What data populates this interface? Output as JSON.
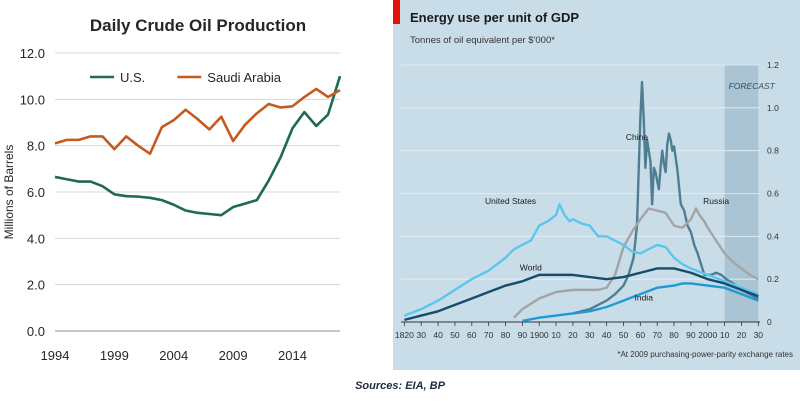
{
  "chart_data": [
    {
      "type": "line",
      "title": "Daily Crude Oil Production",
      "ylabel": "Millions of Barrels",
      "xlabel": "",
      "xlim": [
        1994,
        2018
      ],
      "ylim": [
        0,
        12
      ],
      "xticks": [
        1994,
        1999,
        2004,
        2009,
        2014
      ],
      "xtick_labels": [
        "1994",
        "1999",
        "2004",
        "2009",
        "2014"
      ],
      "yticks": [
        0,
        2,
        4,
        6,
        8,
        10,
        12
      ],
      "ytick_labels": [
        "0.0",
        "2.0",
        "4.0",
        "6.0",
        "8.0",
        "10.0",
        "12.0"
      ],
      "grid": true,
      "legend": "top-left",
      "x": [
        1994,
        1995,
        1996,
        1997,
        1998,
        1999,
        2000,
        2001,
        2002,
        2003,
        2004,
        2005,
        2006,
        2007,
        2008,
        2009,
        2010,
        2011,
        2012,
        2013,
        2014,
        2015,
        2016,
        2017,
        2018
      ],
      "series": [
        {
          "name": "U.S.",
          "color": "#1e6b4e",
          "values": [
            6.65,
            6.55,
            6.45,
            6.45,
            6.25,
            5.9,
            5.82,
            5.8,
            5.75,
            5.65,
            5.45,
            5.2,
            5.1,
            5.05,
            5.0,
            5.35,
            5.5,
            5.65,
            6.5,
            7.5,
            8.75,
            9.45,
            8.85,
            9.35,
            11.0
          ]
        },
        {
          "name": "Saudi Arabia",
          "color": "#c65a1e",
          "values": [
            8.1,
            8.25,
            8.25,
            8.4,
            8.4,
            7.85,
            8.4,
            8.0,
            7.65,
            8.8,
            9.1,
            9.55,
            9.15,
            8.7,
            9.25,
            8.2,
            8.9,
            9.4,
            9.8,
            9.65,
            9.7,
            10.1,
            10.45,
            10.1,
            10.4
          ]
        }
      ]
    },
    {
      "type": "line",
      "title": "Energy use per unit of GDP",
      "subtitle": "Tonnes of oil equivalent per $'000*",
      "footnote": "*At 2009 purchasing-power-parity exchange rates",
      "annotation": "FORECAST",
      "forecast_range": [
        2010,
        2030
      ],
      "xlim": [
        1818,
        2031
      ],
      "ylim": [
        0,
        1.2
      ],
      "xtick_values": [
        1820,
        1830,
        1840,
        1850,
        1860,
        1870,
        1880,
        1890,
        1900,
        1910,
        1920,
        1930,
        1940,
        1950,
        1960,
        1970,
        1980,
        1990,
        2000,
        2010,
        2020,
        2030
      ],
      "xtick_labels": [
        "1820",
        "30",
        "40",
        "50",
        "60",
        "70",
        "80",
        "90",
        "1900",
        "10",
        "20",
        "30",
        "40",
        "50",
        "60",
        "70",
        "80",
        "90",
        "2000",
        "10",
        "20",
        "30"
      ],
      "ytick_values": [
        0,
        0.2,
        0.4,
        0.6,
        0.8,
        1.0,
        1.2
      ],
      "ytick_labels": [
        "0",
        "0.2",
        "0.4",
        "0.6",
        "0.8",
        "1.0",
        "1.2"
      ],
      "grid": true,
      "colors": {
        "background": "#c9dde9",
        "forecast": "#aac4d4",
        "grid": "#e6eff5",
        "accent": "#e3120b"
      },
      "series": [
        {
          "name": "China",
          "color": "#4f7e92",
          "label_at": [
            1958,
            0.85
          ],
          "x": [
            1920,
            1930,
            1940,
            1945,
            1950,
            1953,
            1956,
            1958,
            1959,
            1960,
            1961,
            1962,
            1963,
            1964,
            1965,
            1966,
            1967,
            1968,
            1969,
            1970,
            1971,
            1972,
            1973,
            1974,
            1975,
            1976,
            1977,
            1978,
            1979,
            1980,
            1982,
            1984,
            1986,
            1988,
            1990,
            1992,
            1994,
            1996,
            1998,
            2000,
            2002,
            2005,
            2008,
            2011,
            2015,
            2020,
            2025,
            2030
          ],
          "values": [
            0.04,
            0.06,
            0.1,
            0.13,
            0.17,
            0.22,
            0.3,
            0.45,
            0.7,
            0.95,
            1.12,
            0.95,
            0.72,
            0.85,
            0.8,
            0.75,
            0.55,
            0.72,
            0.7,
            0.66,
            0.62,
            0.72,
            0.8,
            0.74,
            0.7,
            0.83,
            0.88,
            0.85,
            0.8,
            0.82,
            0.71,
            0.55,
            0.52,
            0.45,
            0.42,
            0.36,
            0.32,
            0.27,
            0.22,
            0.22,
            0.22,
            0.23,
            0.22,
            0.2,
            0.18,
            0.15,
            0.13,
            0.11
          ]
        },
        {
          "name": "Russia",
          "color": "#a3a4a5",
          "label_at": [
            2005,
            0.55
          ],
          "x": [
            1885,
            1890,
            1900,
            1910,
            1920,
            1925,
            1930,
            1935,
            1940,
            1945,
            1950,
            1955,
            1960,
            1965,
            1970,
            1975,
            1980,
            1985,
            1990,
            1993,
            1995,
            1998,
            2000,
            2005,
            2010,
            2015,
            2020,
            2025,
            2030
          ],
          "values": [
            0.02,
            0.06,
            0.11,
            0.14,
            0.15,
            0.15,
            0.15,
            0.15,
            0.16,
            0.22,
            0.35,
            0.42,
            0.48,
            0.53,
            0.52,
            0.51,
            0.45,
            0.44,
            0.48,
            0.53,
            0.5,
            0.47,
            0.44,
            0.38,
            0.32,
            0.28,
            0.25,
            0.22,
            0.2
          ]
        },
        {
          "name": "United States",
          "color": "#5bc6ee",
          "label_at": [
            1883,
            0.55
          ],
          "x": [
            1820,
            1830,
            1840,
            1850,
            1860,
            1870,
            1880,
            1885,
            1890,
            1895,
            1900,
            1905,
            1910,
            1912,
            1915,
            1918,
            1920,
            1925,
            1930,
            1935,
            1940,
            1945,
            1950,
            1955,
            1960,
            1965,
            1970,
            1975,
            1980,
            1985,
            1990,
            2000,
            2010,
            2020,
            2030
          ],
          "values": [
            0.03,
            0.06,
            0.1,
            0.15,
            0.2,
            0.24,
            0.3,
            0.34,
            0.36,
            0.38,
            0.45,
            0.47,
            0.5,
            0.55,
            0.5,
            0.47,
            0.48,
            0.46,
            0.45,
            0.4,
            0.4,
            0.38,
            0.36,
            0.33,
            0.32,
            0.34,
            0.36,
            0.35,
            0.3,
            0.27,
            0.25,
            0.22,
            0.19,
            0.16,
            0.13
          ]
        },
        {
          "name": "World",
          "color": "#164d6b",
          "label_at": [
            1895,
            0.24
          ],
          "x": [
            1820,
            1830,
            1840,
            1850,
            1860,
            1870,
            1880,
            1890,
            1900,
            1910,
            1920,
            1930,
            1940,
            1950,
            1960,
            1970,
            1980,
            1990,
            2000,
            2010,
            2020,
            2030
          ],
          "values": [
            0.01,
            0.03,
            0.05,
            0.08,
            0.11,
            0.14,
            0.17,
            0.19,
            0.22,
            0.22,
            0.22,
            0.21,
            0.2,
            0.21,
            0.23,
            0.25,
            0.25,
            0.23,
            0.2,
            0.18,
            0.15,
            0.12
          ]
        },
        {
          "name": "India",
          "color": "#1f9ad2",
          "label_at": [
            1962,
            0.1
          ],
          "x": [
            1890,
            1900,
            1910,
            1920,
            1930,
            1940,
            1950,
            1960,
            1970,
            1980,
            1985,
            1990,
            2000,
            2010,
            2020,
            2030
          ],
          "values": [
            0.005,
            0.02,
            0.03,
            0.04,
            0.05,
            0.07,
            0.1,
            0.13,
            0.16,
            0.17,
            0.18,
            0.18,
            0.17,
            0.16,
            0.13,
            0.1
          ]
        }
      ]
    }
  ],
  "sources": "Sources: EIA, BP"
}
